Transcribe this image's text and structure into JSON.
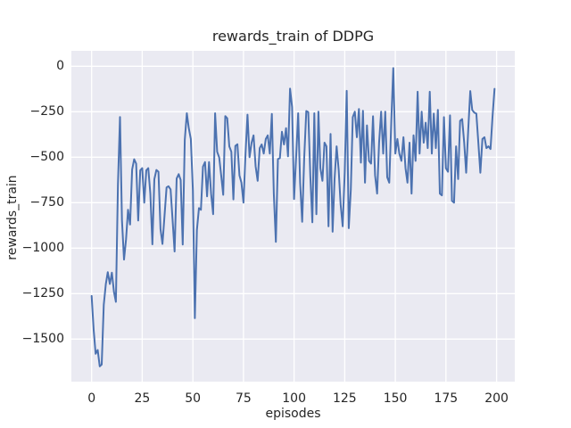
{
  "chart_data": {
    "type": "line",
    "title": "rewards_train of DDPG",
    "xlabel": "episodes",
    "ylabel": "rewards_train",
    "legend": null,
    "grid": true,
    "background_color": "#eaeaf2",
    "gridline_color": "#ffffff",
    "line_color": "#4c72b0",
    "text_color": "#262626",
    "x_ticks": [
      0,
      25,
      50,
      75,
      100,
      125,
      150,
      175,
      200
    ],
    "y_ticks": [
      0,
      -250,
      -500,
      -750,
      -1000,
      -1250,
      -1500
    ],
    "xlim": [
      -10,
      209
    ],
    "ylim": [
      -1734,
      85
    ],
    "x_start": 0,
    "x_step": 1,
    "series": [
      {
        "name": "rewards_train",
        "values": [
          -1263,
          -1450,
          -1581,
          -1560,
          -1650,
          -1640,
          -1312,
          -1198,
          -1132,
          -1197,
          -1135,
          -1240,
          -1295,
          -650,
          -279,
          -846,
          -1063,
          -950,
          -789,
          -870,
          -568,
          -511,
          -535,
          -848,
          -572,
          -560,
          -750,
          -572,
          -560,
          -700,
          -979,
          -621,
          -570,
          -580,
          -895,
          -977,
          -822,
          -666,
          -660,
          -677,
          -850,
          -1018,
          -617,
          -593,
          -625,
          -980,
          -405,
          -258,
          -340,
          -400,
          -683,
          -1385,
          -900,
          -780,
          -789,
          -552,
          -527,
          -715,
          -527,
          -700,
          -813,
          -258,
          -470,
          -502,
          -600,
          -707,
          -274,
          -286,
          -440,
          -470,
          -732,
          -438,
          -429,
          -600,
          -640,
          -750,
          -480,
          -266,
          -500,
          -420,
          -380,
          -550,
          -630,
          -450,
          -430,
          -480,
          -400,
          -380,
          -480,
          -262,
          -700,
          -965,
          -510,
          -505,
          -360,
          -430,
          -340,
          -495,
          -123,
          -225,
          -730,
          -500,
          -258,
          -640,
          -855,
          -500,
          -246,
          -252,
          -600,
          -858,
          -258,
          -813,
          -250,
          -560,
          -630,
          -420,
          -440,
          -880,
          -372,
          -910,
          -620,
          -440,
          -570,
          -760,
          -880,
          -580,
          -135,
          -890,
          -680,
          -280,
          -250,
          -390,
          -235,
          -530,
          -245,
          -640,
          -325,
          -520,
          -535,
          -275,
          -600,
          -700,
          -420,
          -250,
          -480,
          -250,
          -610,
          -640,
          -300,
          -10,
          -480,
          -400,
          -480,
          -520,
          -390,
          -560,
          -640,
          -420,
          -700,
          -380,
          -520,
          -140,
          -480,
          -250,
          -420,
          -310,
          -450,
          -140,
          -480,
          -260,
          -450,
          -240,
          -700,
          -710,
          -280,
          -560,
          -580,
          -270,
          -740,
          -750,
          -440,
          -620,
          -300,
          -290,
          -420,
          -585,
          -350,
          -136,
          -240,
          -255,
          -260,
          -424,
          -585,
          -400,
          -390,
          -450,
          -440,
          -455,
          -280,
          -124
        ]
      }
    ]
  }
}
